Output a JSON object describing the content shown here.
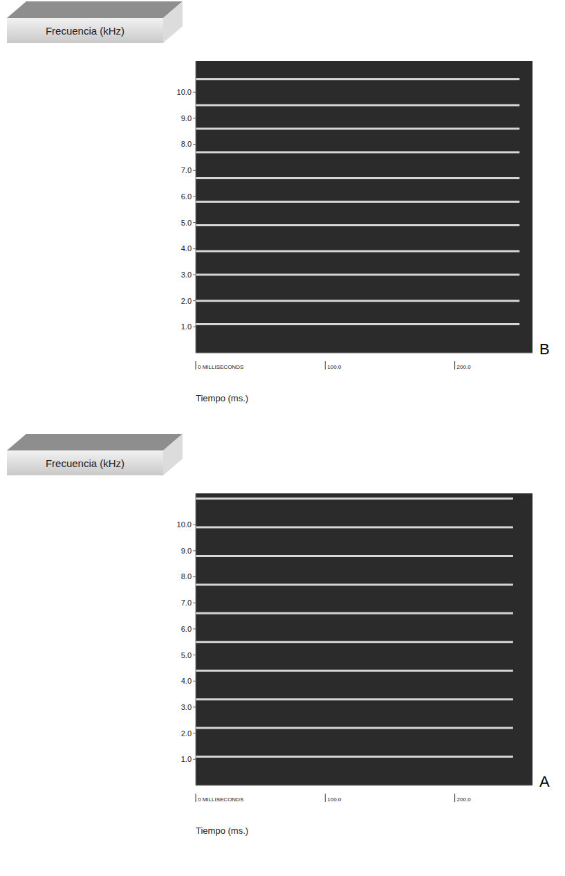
{
  "chart_data": [
    {
      "type": "line",
      "panel": "B",
      "y_label": "Frecuencia (kHz)",
      "x_label": "Tiempo (ms.)",
      "color": "#d6d6d6",
      "x": [
        0,
        250
      ],
      "series": [
        {
          "values": [
            1.1,
            1.1
          ]
        },
        {
          "values": [
            2.0,
            2.0
          ]
        },
        {
          "values": [
            3.0,
            3.0
          ]
        },
        {
          "values": [
            3.9,
            3.9
          ]
        },
        {
          "values": [
            4.9,
            4.9
          ]
        },
        {
          "values": [
            5.8,
            5.8
          ]
        },
        {
          "values": [
            6.7,
            6.7
          ]
        },
        {
          "values": [
            7.7,
            7.7
          ]
        },
        {
          "values": [
            8.6,
            8.6
          ]
        },
        {
          "values": [
            9.5,
            9.5
          ]
        },
        {
          "values": [
            10.5,
            10.5
          ]
        }
      ],
      "xlim": [
        0,
        260
      ],
      "xticks": [
        {
          "value": 0,
          "label": "0 MILLISECONDS"
        },
        {
          "value": 100,
          "label": "100.0"
        },
        {
          "value": 200,
          "label": "200.0"
        }
      ],
      "ylim": [
        0,
        11.2
      ],
      "yticks": [
        {
          "value": 1,
          "label": "1.0"
        },
        {
          "value": 2,
          "label": "2.0"
        },
        {
          "value": 3,
          "label": "3.0"
        },
        {
          "value": 4,
          "label": "4.0"
        },
        {
          "value": 5,
          "label": "5.0"
        },
        {
          "value": 6,
          "label": "6.0"
        },
        {
          "value": 7,
          "label": "7.0"
        },
        {
          "value": 8,
          "label": "8.0"
        },
        {
          "value": 9,
          "label": "9.0"
        },
        {
          "value": 10,
          "label": "10.0"
        }
      ]
    },
    {
      "type": "line",
      "panel": "A",
      "y_label": "Frecuencia (kHz)",
      "x_label": "Tiempo (ms.)",
      "color": "#d6d6d6",
      "x": [
        0,
        245
      ],
      "series": [
        {
          "values": [
            1.1,
            1.1
          ]
        },
        {
          "values": [
            2.2,
            2.2
          ]
        },
        {
          "values": [
            3.3,
            3.3
          ]
        },
        {
          "values": [
            4.4,
            4.4
          ]
        },
        {
          "values": [
            5.5,
            5.5
          ]
        },
        {
          "values": [
            6.6,
            6.6
          ]
        },
        {
          "values": [
            7.7,
            7.7
          ]
        },
        {
          "values": [
            8.8,
            8.8
          ]
        },
        {
          "values": [
            9.9,
            9.9
          ]
        },
        {
          "values": [
            11.0,
            11.0
          ]
        }
      ],
      "xlim": [
        0,
        260
      ],
      "xticks": [
        {
          "value": 0,
          "label": "0 MILLISECONDS"
        },
        {
          "value": 100,
          "label": "100.0"
        },
        {
          "value": 200,
          "label": "200.0"
        }
      ],
      "ylim": [
        0,
        11.2
      ],
      "yticks": [
        {
          "value": 1,
          "label": "1.0"
        },
        {
          "value": 2,
          "label": "2.0"
        },
        {
          "value": 3,
          "label": "3.0"
        },
        {
          "value": 4,
          "label": "4.0"
        },
        {
          "value": 5,
          "label": "5.0"
        },
        {
          "value": 6,
          "label": "6.0"
        },
        {
          "value": 7,
          "label": "7.0"
        },
        {
          "value": 8,
          "label": "8.0"
        },
        {
          "value": 9,
          "label": "9.0"
        },
        {
          "value": 10,
          "label": "10.0"
        }
      ]
    }
  ]
}
